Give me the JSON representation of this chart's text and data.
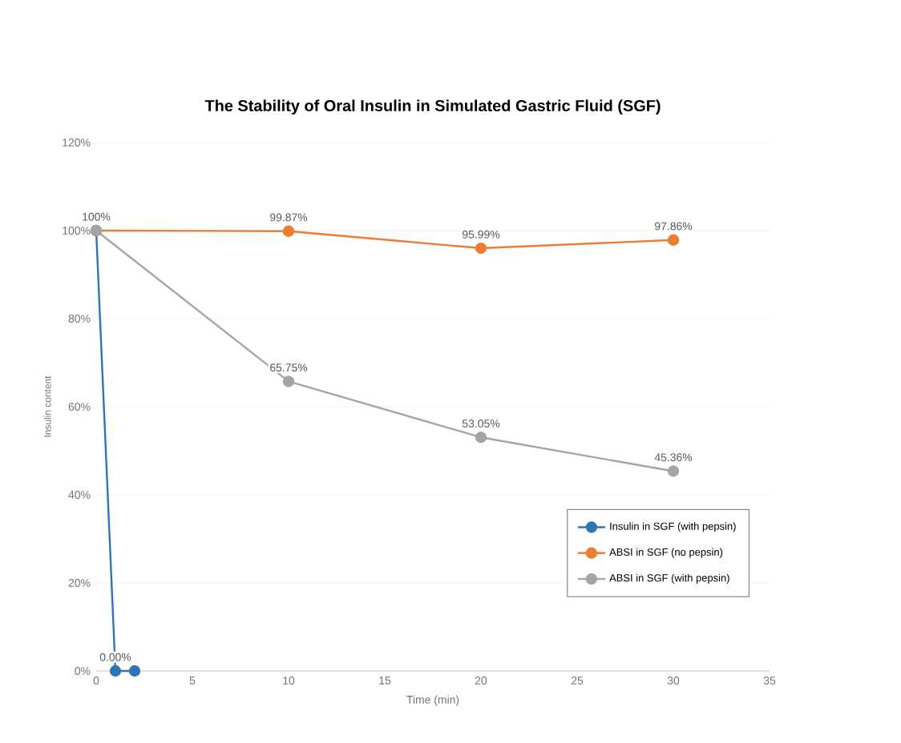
{
  "chart_data": {
    "type": "line",
    "title": "The Stability of Oral Insulin in Simulated Gastric Fluid (SGF)",
    "xlabel": "Time (min)",
    "ylabel": "Insulin content",
    "xlim": [
      0,
      35
    ],
    "xticks": [
      0,
      5,
      10,
      15,
      20,
      25,
      30,
      35
    ],
    "ylim": [
      0,
      120
    ],
    "yticks": [
      {
        "value": 0,
        "label": "0%"
      },
      {
        "value": 20,
        "label": "20%"
      },
      {
        "value": 40,
        "label": "40%"
      },
      {
        "value": 60,
        "label": "60%"
      },
      {
        "value": 80,
        "label": "80%"
      },
      {
        "value": 100,
        "label": "100%"
      },
      {
        "value": 120,
        "label": "120%"
      }
    ],
    "grid": "y",
    "legend": "bottom right",
    "marker": "circle",
    "series": [
      {
        "name": "Insulin in SGF (with pepsin)",
        "color": "#2e75b6",
        "x": [
          0,
          1,
          2
        ],
        "values": [
          100,
          0,
          0
        ],
        "value_labels": [
          null,
          "0.00%",
          null
        ]
      },
      {
        "name": "ABSI in SGF (no pepsin)",
        "color": "#ed7d31",
        "x": [
          0,
          10,
          20,
          30
        ],
        "values": [
          100,
          99.87,
          95.99,
          97.86
        ],
        "value_labels": [
          "100%",
          "99.87%",
          "95.99%",
          "97.86%"
        ]
      },
      {
        "name": "ABSI in SGF (with pepsin)",
        "color": "#a5a5a5",
        "x": [
          0,
          10,
          20,
          30
        ],
        "values": [
          100,
          65.75,
          53.05,
          45.36
        ],
        "value_labels": [
          null,
          "65.75%",
          "53.05%",
          "45.36%"
        ]
      }
    ]
  }
}
